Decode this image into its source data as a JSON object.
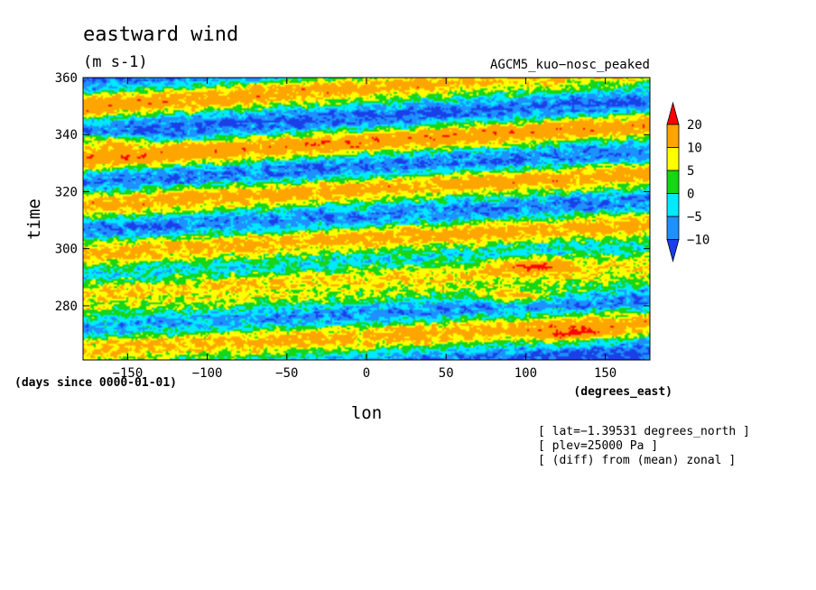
{
  "chart_data": {
    "type": "heatmap",
    "title": "eastward wind",
    "units": "(m s-1)",
    "dataset": "AGCM5_kuo−nosc_peaked",
    "xlabel": "lon",
    "ylabel": "time",
    "x_units": "(degrees_east)",
    "y_units": "(days since 0000-01-01)",
    "xlim": [
      -178,
      178
    ],
    "ylim": [
      261,
      360
    ],
    "x_ticks": [
      -150,
      -100,
      -50,
      0,
      50,
      100,
      150
    ],
    "x_tick_labels": [
      "−150",
      "−100",
      "−50",
      "0",
      "50",
      "100",
      "150"
    ],
    "y_ticks": [
      280,
      300,
      320,
      340,
      360
    ],
    "y_tick_labels": [
      "280",
      "300",
      "320",
      "340",
      "360"
    ],
    "colorbar": {
      "levels": [
        -10,
        -5,
        0,
        5,
        10,
        20
      ],
      "level_labels": [
        "−10",
        "−5",
        "0",
        "5",
        "10",
        "20"
      ],
      "colors": [
        "#1a3fe8",
        "#1e90ff",
        "#00eaff",
        "#16d616",
        "#ffff00",
        "#ffa500",
        "#ff0000"
      ],
      "extend": "both"
    },
    "annotations": [
      "[ lat=−1.39531 degrees_north ]",
      "[ plev=25000 Pa ]",
      "[ (diff) from (mean) zonal ]"
    ],
    "wave_bands": [
      {
        "t0": 358,
        "slope": 0.04,
        "amp": 1.0
      },
      {
        "t0": 338,
        "slope": 0.035,
        "amp": 1.0
      },
      {
        "t0": 322,
        "slope": 0.03,
        "amp": 0.9
      },
      {
        "t0": 305,
        "slope": 0.028,
        "amp": 0.9
      },
      {
        "t0": 291,
        "slope": 0.03,
        "amp": 1.2
      },
      {
        "t0": 271,
        "slope": 0.025,
        "amp": 1.0
      }
    ],
    "strong_spots": [
      {
        "lon": 95,
        "time": 283,
        "value": 23
      },
      {
        "lon": 105,
        "time": 294,
        "value": 21
      },
      {
        "lon": -165,
        "time": 338,
        "value": 21
      },
      {
        "lon": 130,
        "time": 270,
        "value": 21
      }
    ],
    "grid": false
  }
}
